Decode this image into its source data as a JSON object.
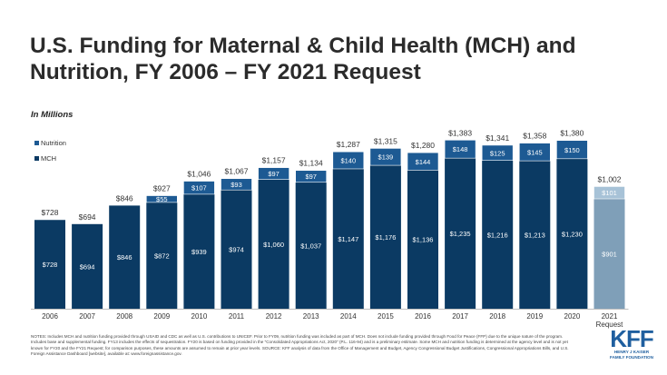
{
  "title": "U.S. Funding for Maternal & Child Health (MCH) and Nutrition, FY 2006 – FY 2021 Request",
  "subtitle": "In Millions",
  "colors": {
    "mch": "#0b3a63",
    "nutrition": "#1d5a93",
    "request_mch": "#7f9fb8",
    "request_nutrition": "#a7c2d7",
    "logo": "#1f5f9f"
  },
  "notes": "NOTES: Includes MCH and nutrition funding provided through USAID and CDC as well as U.S. contributions to UNICEF. Prior to FY09, nutrition funding was included as part of MCH. Does not include funding provided through Food for Peace (FFP) due to the unique nature of the program. Includes base and supplemental funding. FY13 includes the effects of sequestration. FY20 is based on funding provided in the \"Consolidated Appropriations Act, 2020\" (P.L. 116-94) and is a preliminary estimate. Some MCH and nutrition funding is determined at the agency level and is not yet known for FY20 and the FY21 Request; for comparison purposes, these amounts are assumed to remain at prior year levels. SOURCE: KFF analysis of data from the Office of Management and Budget, Agency Congressional Budget Justifications, Congressional Appropriations Bills, and U.S. Foreign Assistance Dashboard [website], available at: www.foreignassistance.gov.",
  "logo": {
    "mark": "KFF",
    "line1": "HENRY J KAISER",
    "line2": "FAMILY FOUNDATION"
  },
  "chart_data": {
    "type": "bar",
    "stacked": true,
    "title": "U.S. Funding for Maternal & Child Health (MCH) and Nutrition, FY 2006 – FY 2021 Request",
    "ylabel": "In Millions",
    "ylim": [
      0,
      1400
    ],
    "categories": [
      "2006",
      "2007",
      "2008",
      "2009",
      "2010",
      "2011",
      "2012",
      "2013",
      "2014",
      "2015",
      "2016",
      "2017",
      "2018",
      "2019",
      "2020",
      "2021\nRequest"
    ],
    "series": [
      {
        "name": "MCH",
        "values": [
          728,
          694,
          846,
          872,
          939,
          974,
          1060,
          1037,
          1147,
          1176,
          1136,
          1235,
          1216,
          1213,
          1230,
          901
        ],
        "labels": [
          "$728",
          "$694",
          "$846",
          "$872",
          "$939",
          "$974",
          "$1,060",
          "$1,037",
          "$1,147",
          "$1,176",
          "$1,136",
          "$1,235",
          "$1,216",
          "$1,213",
          "$1,230",
          "$901"
        ]
      },
      {
        "name": "Nutrition",
        "values": [
          0,
          0,
          0,
          55,
          107,
          93,
          97,
          97,
          140,
          139,
          144,
          148,
          125,
          145,
          150,
          101
        ],
        "labels": [
          "",
          "",
          "",
          "$55",
          "$107",
          "$93",
          "$97",
          "$97",
          "$140",
          "$139",
          "$144",
          "$148",
          "$125",
          "$145",
          "$150",
          "$101"
        ]
      }
    ],
    "totals": [
      728,
      694,
      846,
      927,
      1046,
      1067,
      1157,
      1134,
      1287,
      1315,
      1280,
      1383,
      1341,
      1358,
      1380,
      1002
    ],
    "total_labels": [
      "$728",
      "$694",
      "$846",
      "$927",
      "$1,046",
      "$1,067",
      "$1,157",
      "$1,134",
      "$1,287",
      "$1,315",
      "$1,280",
      "$1,383",
      "$1,341",
      "$1,358",
      "$1,380",
      "$1,002"
    ],
    "legend": [
      "Nutrition",
      "MCH"
    ],
    "legend_position": "top-left",
    "grid": false
  }
}
